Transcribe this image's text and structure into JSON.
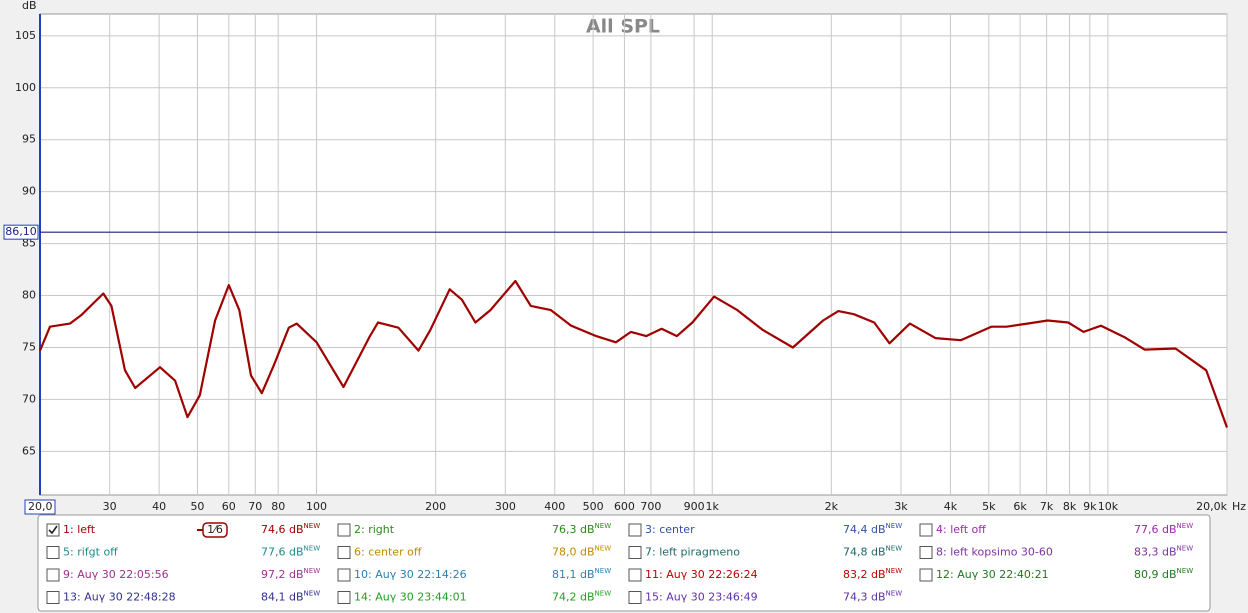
{
  "chart_data": {
    "type": "line",
    "title": "All SPL",
    "ylabel": "dB",
    "xlabel": "Hz",
    "xscale": "log",
    "grid": true,
    "xlim": [
      20,
      20000
    ],
    "ylim": [
      60.8,
      107.1
    ],
    "xticks": [
      {
        "value": 20,
        "label": "20,0"
      },
      30,
      40,
      50,
      60,
      70,
      80,
      100,
      200,
      300,
      400,
      500,
      600,
      700,
      900,
      {
        "value": 1000,
        "label": "1k"
      },
      {
        "value": 2000,
        "label": "2k"
      },
      {
        "value": 3000,
        "label": "3k"
      },
      {
        "value": 4000,
        "label": "4k"
      },
      {
        "value": 5000,
        "label": "5k"
      },
      {
        "value": 6000,
        "label": "6k"
      },
      {
        "value": 7000,
        "label": "7k"
      },
      {
        "value": 8000,
        "label": "8k"
      },
      {
        "value": 9000,
        "label": "9k"
      },
      {
        "value": 10000,
        "label": "10k"
      },
      {
        "value": 20000,
        "label": "20,0k"
      }
    ],
    "yticks": [
      65,
      70,
      75,
      80,
      85,
      90,
      95,
      100,
      105
    ],
    "reference_line": {
      "value": 86.1,
      "label": "86,10",
      "color": "#1c1c8c"
    },
    "x": [
      20,
      21.2,
      23.8,
      25.4,
      28.9,
      30.3,
      32.8,
      34.8,
      40.2,
      43.9,
      47.2,
      50.7,
      55.4,
      60,
      63.8,
      68.3,
      72.7,
      78,
      85.1,
      89.1,
      100,
      117,
      136,
      143,
      161,
      181,
      194,
      217,
      233,
      252,
      275,
      318,
      348,
      391,
      440,
      509,
      571,
      623,
      681,
      745,
      814,
      891,
      1011,
      1157,
      1340,
      1599,
      1906,
      2084,
      2280,
      2566,
      2806,
      3160,
      3664,
      4248,
      5074,
      5551,
      6253,
      7045,
      7937,
      8680,
      9607,
      11000,
      12390,
      14820,
      17720,
      20000
    ],
    "series": [
      {
        "name": "1: left",
        "color": "#a00000",
        "values": [
          74.7,
          77,
          77.3,
          78.1,
          80.2,
          79,
          72.8,
          71.1,
          73.1,
          71.8,
          68.3,
          70.4,
          77.6,
          81,
          78.6,
          72.3,
          70.6,
          73.3,
          76.9,
          77.3,
          75.5,
          71.2,
          76,
          77.4,
          76.9,
          74.7,
          76.7,
          80.6,
          79.6,
          77.4,
          78.6,
          81.4,
          79,
          78.6,
          77.1,
          76.1,
          75.5,
          76.5,
          76.1,
          76.8,
          76.1,
          77.4,
          79.9,
          78.6,
          76.7,
          75,
          77.6,
          78.5,
          78.2,
          77.4,
          75.4,
          77.3,
          75.9,
          75.7,
          77,
          77,
          77.3,
          77.6,
          77.4,
          76.5,
          77.1,
          76,
          74.8,
          74.9,
          72.8,
          67.3
        ]
      }
    ]
  },
  "legend_panel": {
    "smoothing": "1⁄6",
    "new_badge": "NEW",
    "measurements": [
      {
        "name": "1: left",
        "level": "74,6 dB",
        "color": "#a00000",
        "checked": true
      },
      {
        "name": "2: right",
        "level": "76,3 dB",
        "color": "#2a8a1a",
        "checked": false
      },
      {
        "name": "3: center",
        "level": "74,4 dB",
        "color": "#3050a8",
        "checked": false
      },
      {
        "name": "4: left off",
        "level": "77,6 dB",
        "color": "#9a2aa8",
        "checked": false
      },
      {
        "name": "5: rifgt off",
        "level": "77,6 dB",
        "color": "#208a8a",
        "checked": false
      },
      {
        "name": "6: center off",
        "level": "78,0 dB",
        "color": "#c08a00",
        "checked": false
      },
      {
        "name": "7: left piragmeno",
        "level": "74,8 dB",
        "color": "#206a6a",
        "checked": false
      },
      {
        "name": "8: left kopsimo 30-60",
        "level": "83,3 dB",
        "color": "#8030a8",
        "checked": false
      },
      {
        "name": "9: Auγ 30 22:05:56",
        "level": "97,2 dB",
        "color": "#a03090",
        "checked": false
      },
      {
        "name": "10: Auγ 30 22:14:26",
        "level": "81,1 dB",
        "color": "#2a80b0",
        "checked": false
      },
      {
        "name": "11: Auγ 30 22:26:24",
        "level": "83,2 dB",
        "color": "#c00000",
        "checked": false
      },
      {
        "name": "12: Auγ 30 22:40:21",
        "level": "80,9 dB",
        "color": "#207a20",
        "checked": false
      },
      {
        "name": "13: Auγ 30 22:48:28",
        "level": "84,1 dB",
        "color": "#303090",
        "checked": false
      },
      {
        "name": "14: Auγ 30 23:44:01",
        "level": "74,2 dB",
        "color": "#20a020",
        "checked": false
      },
      {
        "name": "15: Auγ 30 23:46:49",
        "level": "74,3 dB",
        "color": "#6030a8",
        "checked": false
      }
    ]
  }
}
